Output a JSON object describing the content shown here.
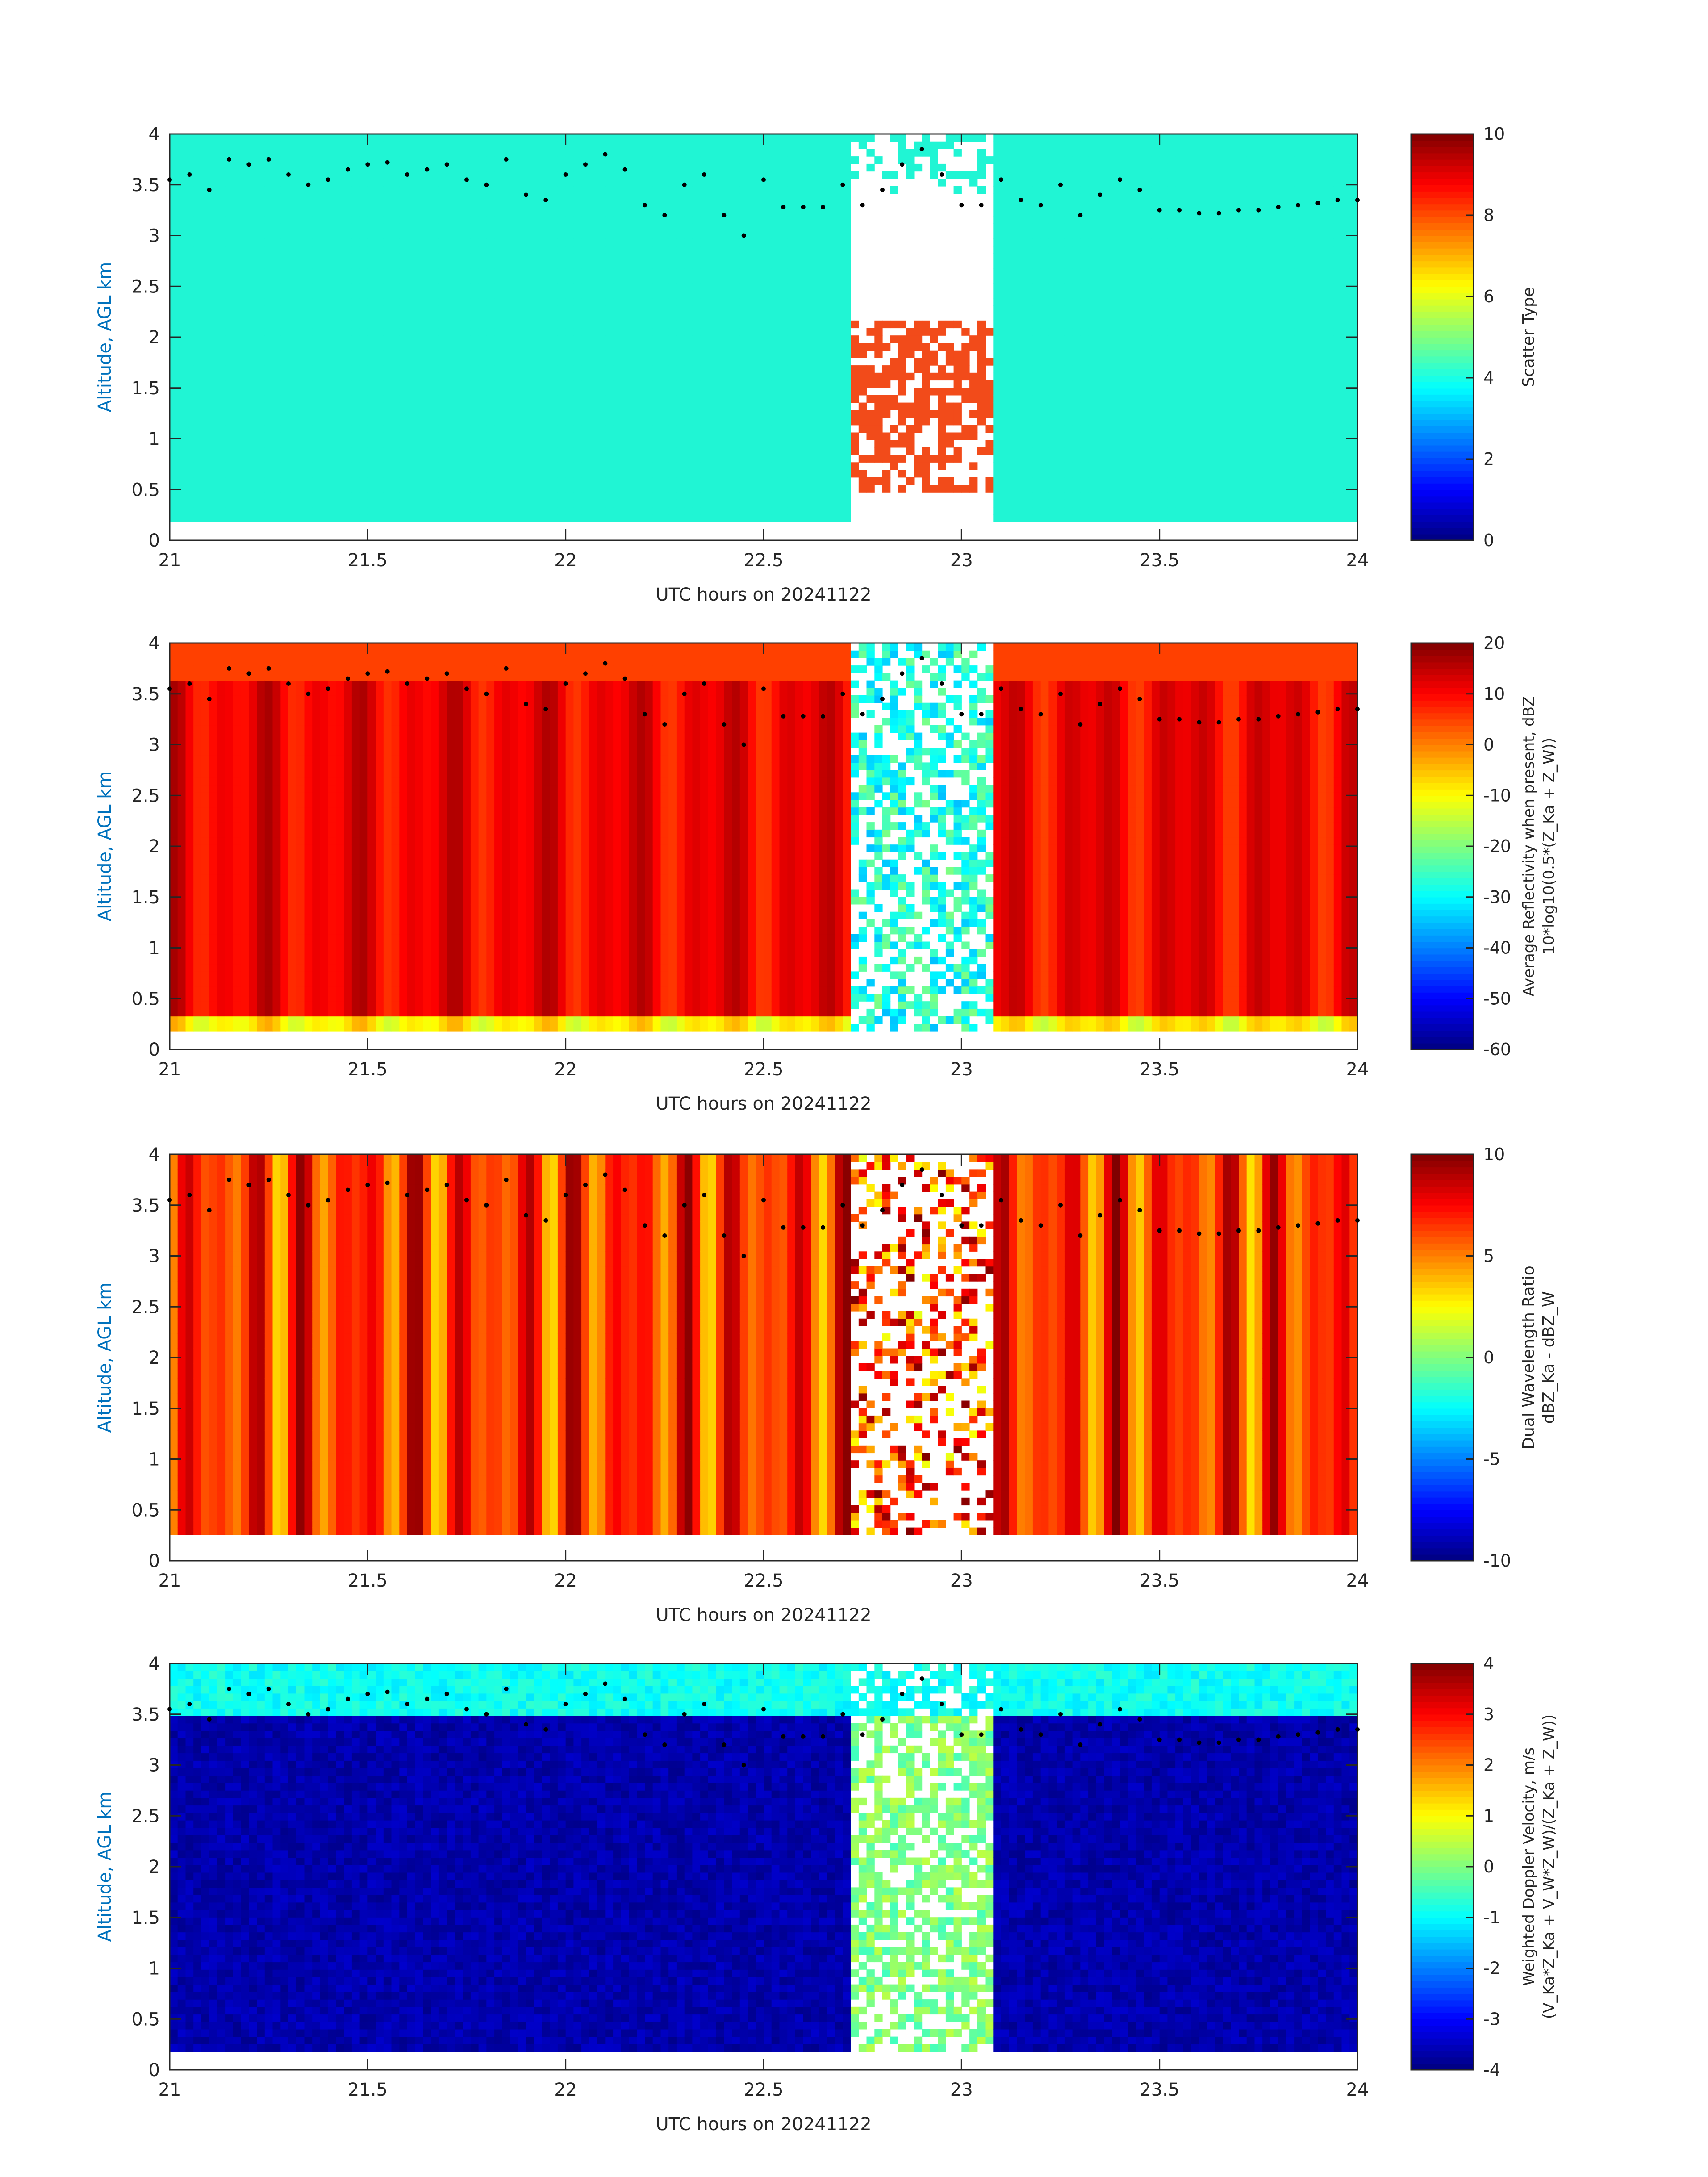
{
  "figure": {
    "colors": {
      "axis": "#262626",
      "ylabel": "#0072BD",
      "background": "#ffffff",
      "scatter_fill": "#20f5d4",
      "scatter_alt": "#f24b1a"
    }
  },
  "chart_data": [
    {
      "type": "heatmap",
      "id": "scatter-type",
      "xlabel": "UTC hours on 20241122",
      "ylabel": "Altitude, AGL km",
      "xlim": [
        21,
        24
      ],
      "ylim": [
        0,
        4
      ],
      "xticks": [
        "21",
        "21.5",
        "22",
        "22.5",
        "23",
        "23.5",
        "24"
      ],
      "yticks": [
        "0",
        "0.5",
        "1",
        "1.5",
        "2",
        "2.5",
        "3",
        "3.5",
        "4"
      ],
      "colorbar": {
        "label_lines": [
          "Scatter Type"
        ],
        "range": [
          0,
          10
        ],
        "ticks": [
          "0",
          "2",
          "4",
          "6",
          "8",
          "10"
        ],
        "colormap": "jet"
      },
      "description_values": {
        "dominant_value": 4,
        "secondary_value": 8.5,
        "data_floor_km": 0.18,
        "gap_hours": [
          22.62,
          23.12
        ]
      }
    },
    {
      "type": "heatmap",
      "id": "reflectivity",
      "xlabel": "UTC hours on 20241122",
      "ylabel": "Altitude, AGL km",
      "xlim": [
        21,
        24
      ],
      "ylim": [
        0,
        4
      ],
      "xticks": [
        "21",
        "21.5",
        "22",
        "22.5",
        "23",
        "23.5",
        "24"
      ],
      "yticks": [
        "0",
        "0.5",
        "1",
        "1.5",
        "2",
        "2.5",
        "3",
        "3.5",
        "4"
      ],
      "colorbar": {
        "label_lines": [
          "Average Reflectivity when present, dBZ",
          "10*log10(0.5*(Z_Ka + Z_W))"
        ],
        "range": [
          -60,
          20
        ],
        "ticks": [
          "-60",
          "-50",
          "-40",
          "-30",
          "-20",
          "-10",
          "0",
          "10",
          "20"
        ],
        "colormap": "jet"
      }
    },
    {
      "type": "heatmap",
      "id": "dwr",
      "xlabel": "UTC hours on 20241122",
      "ylabel": "Altitude, AGL km",
      "xlim": [
        21,
        24
      ],
      "ylim": [
        0,
        4
      ],
      "xticks": [
        "21",
        "21.5",
        "22",
        "22.5",
        "23",
        "23.5",
        "24"
      ],
      "yticks": [
        "0",
        "0.5",
        "1",
        "1.5",
        "2",
        "2.5",
        "3",
        "3.5",
        "4"
      ],
      "colorbar": {
        "label_lines": [
          "Dual Wavelength Ratio",
          "dBZ_Ka - dBZ_W"
        ],
        "range": [
          -10,
          10
        ],
        "ticks": [
          "-10",
          "-5",
          "0",
          "5",
          "10"
        ],
        "colormap": "jet"
      }
    },
    {
      "type": "heatmap",
      "id": "doppler",
      "xlabel": "UTC hours on 20241122",
      "ylabel": "Altitude, AGL km",
      "xlim": [
        21,
        24
      ],
      "ylim": [
        0,
        4
      ],
      "xticks": [
        "21",
        "21.5",
        "22",
        "22.5",
        "23",
        "23.5",
        "24"
      ],
      "yticks": [
        "0",
        "0.5",
        "1",
        "1.5",
        "2",
        "2.5",
        "3",
        "3.5",
        "4"
      ],
      "colorbar": {
        "label_lines": [
          "Weighted Doppler Velocity, m/s",
          "(V_Ka*Z_Ka + V_W*Z_W)/(Z_Ka + Z_W))"
        ],
        "range": [
          -4,
          4
        ],
        "ticks": [
          "-4",
          "-3",
          "-2",
          "-1",
          "0",
          "1",
          "2",
          "3",
          "4"
        ],
        "colormap": "jet"
      }
    }
  ],
  "cloud_top_dots": {
    "description": "black dots overlaid on all four panels",
    "hours": [
      21.0,
      21.05,
      21.1,
      21.15,
      21.2,
      21.25,
      21.3,
      21.35,
      21.4,
      21.45,
      21.5,
      21.55,
      21.6,
      21.65,
      21.7,
      21.75,
      21.8,
      21.85,
      21.9,
      21.95,
      22.0,
      22.05,
      22.1,
      22.15,
      22.2,
      22.25,
      22.3,
      22.35,
      22.4,
      22.45,
      22.5,
      22.55,
      22.6,
      22.65,
      22.7,
      22.75,
      22.8,
      22.85,
      22.9,
      22.95,
      23.0,
      23.05,
      23.1,
      23.15,
      23.2,
      23.25,
      23.3,
      23.35,
      23.4,
      23.45,
      23.5,
      23.55,
      23.6,
      23.65,
      23.7,
      23.75,
      23.8,
      23.85,
      23.9,
      23.95,
      24.0
    ],
    "altitudes_km": [
      3.55,
      3.6,
      3.45,
      3.75,
      3.7,
      3.75,
      3.6,
      3.5,
      3.55,
      3.65,
      3.7,
      3.72,
      3.6,
      3.65,
      3.7,
      3.55,
      3.5,
      3.75,
      3.4,
      3.35,
      3.6,
      3.7,
      3.8,
      3.65,
      3.3,
      3.2,
      3.5,
      3.6,
      3.2,
      3.0,
      3.55,
      3.28,
      3.28,
      3.28,
      3.5,
      3.3,
      3.45,
      3.7,
      3.85,
      3.6,
      3.3,
      3.3,
      3.55,
      3.35,
      3.3,
      3.5,
      3.2,
      3.4,
      3.55,
      3.45,
      3.25,
      3.25,
      3.22,
      3.22,
      3.25,
      3.25,
      3.28,
      3.3,
      3.32,
      3.35,
      3.35
    ]
  }
}
